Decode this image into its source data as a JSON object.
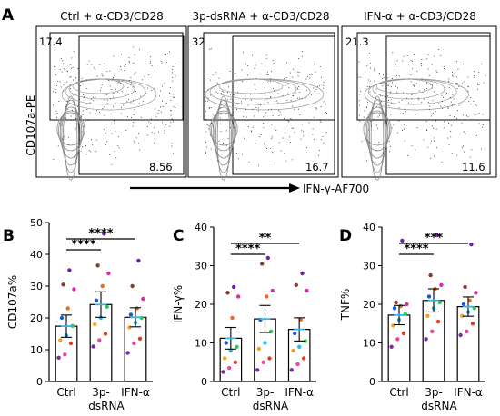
{
  "panel_letters": {
    "A": "A",
    "B": "B",
    "C": "C",
    "D": "D"
  },
  "flow": {
    "y_axis_label": "CD107a-PE",
    "x_axis_label": "IFN-γ-AF700",
    "panels": [
      {
        "title": "Ctrl + α-CD3/CD28",
        "upper_left_pct": "17.4",
        "lower_right_pct": "8.56"
      },
      {
        "title": "3p-dsRNA + α-CD3/CD28",
        "upper_left_pct": "32",
        "lower_right_pct": "16.7"
      },
      {
        "title": "IFN-α + α-CD3/CD28",
        "upper_left_pct": "21.3",
        "lower_right_pct": "11.6"
      }
    ]
  },
  "chart_data": [
    {
      "type": "bar",
      "panel": "B",
      "ylabel": "CD107a%",
      "ylim": [
        0,
        50
      ],
      "yticks": [
        0,
        10,
        20,
        30,
        40,
        50
      ],
      "categories": [
        "Ctrl",
        "3p-dsRNA",
        "IFN-α"
      ],
      "category_labels": [
        [
          "Ctrl"
        ],
        [
          "3p-",
          "dsRNA"
        ],
        [
          "IFN-α"
        ]
      ],
      "values": [
        17.4,
        24.2,
        20.2
      ],
      "errors": [
        3.5,
        4.0,
        3.0
      ],
      "points": [
        [
          7.5,
          8.5,
          12,
          13,
          14.5,
          17.5,
          20,
          23,
          29,
          30.5,
          35
        ],
        [
          11,
          13,
          15,
          18,
          20,
          23.5,
          25.5,
          30,
          34,
          36.5,
          46.5
        ],
        [
          9,
          12,
          13.5,
          17,
          18.5,
          20,
          21,
          23,
          26,
          30,
          38
        ]
      ],
      "point_colors": [
        "#7f2aa5",
        "#e8489a",
        "#e23b2b",
        "#f5a21a",
        "#2fb7e5",
        "#34c759",
        "#1b5ad6",
        "#ec6a1f",
        "#d62fa6",
        "#8a3d2c",
        "#6a1fb0"
      ],
      "significance": [
        {
          "from": 0,
          "to": 1,
          "label": "****"
        },
        {
          "from": 0,
          "to": 2,
          "label": "****"
        }
      ]
    },
    {
      "type": "bar",
      "panel": "C",
      "ylabel": "IFN-γ%",
      "ylim": [
        0,
        40
      ],
      "yticks": [
        0,
        10,
        20,
        30,
        40
      ],
      "categories": [
        "Ctrl",
        "3p-dsRNA",
        "IFN-α"
      ],
      "category_labels": [
        [
          "Ctrl"
        ],
        [
          "3p-",
          "dsRNA"
        ],
        [
          "IFN-α"
        ]
      ],
      "values": [
        11.2,
        16.2,
        13.5
      ],
      "errors": [
        2.8,
        3.5,
        3.0
      ],
      "points": [
        [
          2.5,
          3.5,
          5,
          6,
          8,
          9,
          10,
          16.5,
          22,
          23,
          24.5
        ],
        [
          3,
          5,
          6,
          8.5,
          10,
          13,
          16,
          22,
          23.5,
          30.5,
          32
        ],
        [
          3,
          4.5,
          6,
          8,
          9,
          10.5,
          12.5,
          16,
          23.5,
          25,
          28
        ]
      ],
      "point_colors": [
        "#7f2aa5",
        "#e8489a",
        "#e23b2b",
        "#f5a21a",
        "#2fb7e5",
        "#34c759",
        "#1b5ad6",
        "#ec6a1f",
        "#d62fa6",
        "#8a3d2c",
        "#6a1fb0"
      ],
      "significance": [
        {
          "from": 0,
          "to": 1,
          "label": "****"
        },
        {
          "from": 0,
          "to": 2,
          "label": "**"
        }
      ]
    },
    {
      "type": "bar",
      "panel": "D",
      "ylabel": "TNF%",
      "ylim": [
        0,
        40
      ],
      "yticks": [
        0,
        10,
        20,
        30,
        40
      ],
      "categories": [
        "Ctrl",
        "3p-dsRNA",
        "IFN-α"
      ],
      "category_labels": [
        [
          "Ctrl"
        ],
        [
          "3p-",
          "dsRNA"
        ],
        [
          "IFN-α"
        ]
      ],
      "values": [
        17.2,
        21.0,
        19.4
      ],
      "errors": [
        2.5,
        3.0,
        2.5
      ],
      "points": [
        [
          9,
          11,
          12.5,
          14.5,
          16,
          17.5,
          19,
          19.5,
          20,
          20.5,
          36.5
        ],
        [
          11,
          13,
          15.5,
          17,
          19,
          20.5,
          22,
          24,
          25,
          27.5,
          38
        ],
        [
          12,
          13,
          15,
          17,
          18,
          19,
          20,
          21,
          23,
          24.5,
          35.5
        ]
      ],
      "point_colors": [
        "#7f2aa5",
        "#e8489a",
        "#e23b2b",
        "#f5a21a",
        "#2fb7e5",
        "#34c759",
        "#1b5ad6",
        "#ec6a1f",
        "#d62fa6",
        "#8a3d2c",
        "#6a1fb0"
      ],
      "significance": [
        {
          "from": 0,
          "to": 1,
          "label": "****"
        },
        {
          "from": 0,
          "to": 2,
          "label": "***"
        }
      ]
    }
  ]
}
